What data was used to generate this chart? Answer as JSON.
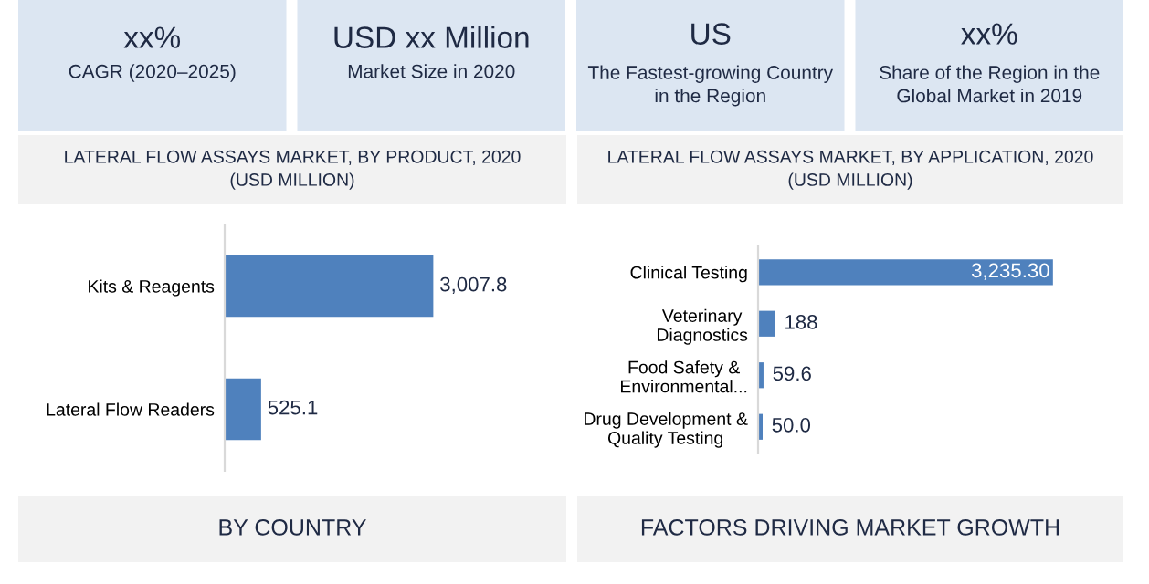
{
  "chart_data": [
    {
      "type": "other",
      "annotations": [
        "xx%",
        "CAGR (2020–2025)",
        "USD xx Million",
        "Market Size in 2020",
        "US",
        "The Fastest-growing Country\nin the Region",
        "xx%",
        "Share of the Region in the\nGlobal Market in 2019"
      ]
    },
    {
      "type": "bar",
      "orientation": "horizontal",
      "title": "LATERAL FLOW ASSAYS MARKET, BY PRODUCT, 2020\n(USD MILLION)",
      "categories": [
        "Kits & Reagents",
        "Lateral Flow Readers"
      ],
      "values": [
        3007.8,
        525.1
      ],
      "value_labels": [
        "3,007.8",
        "525.1"
      ],
      "color": "#4f81bd"
    },
    {
      "type": "bar",
      "orientation": "horizontal",
      "title": "LATERAL FLOW ASSAYS MARKET, BY APPLICATION, 2020\n(USD MILLION)",
      "categories": [
        "Clinical Testing",
        "Veterinary\nDiagnostics",
        "Food Safety &\nEnvironmental...",
        "Drug Development &\nQuality Testing"
      ],
      "values": [
        3235.3,
        188,
        59.6,
        50.0
      ],
      "value_labels": [
        "3,235.30",
        "188",
        "59.6",
        "50.0"
      ],
      "color": "#4f81bd"
    },
    {
      "type": "other",
      "annotations": [
        "BY COUNTRY",
        "FACTORS DRIVING MARKET GROWTH"
      ]
    }
  ]
}
